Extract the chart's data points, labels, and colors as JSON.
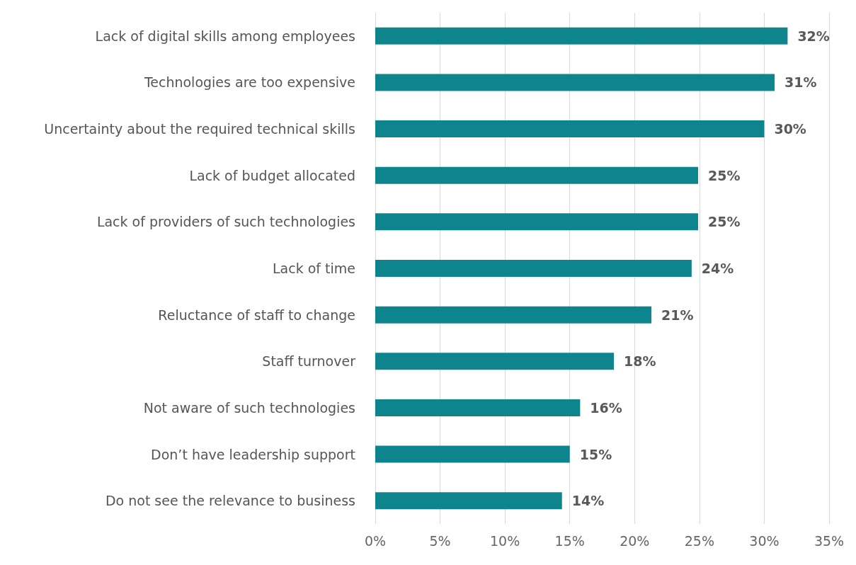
{
  "chart_data": {
    "type": "bar",
    "orientation": "horizontal",
    "categories": [
      "Lack of digital skills among employees",
      "Technologies are too expensive",
      "Uncertainty about the required technical skills",
      "Lack of budget allocated",
      "Lack of providers of such technologies",
      "Lack of time",
      "Reluctance of staff to change",
      "Staff turnover",
      "Not aware of such technologies",
      "Don’t have leadership support",
      "Do not see the relevance to business"
    ],
    "values": [
      31.8,
      30.8,
      30.0,
      24.9,
      24.9,
      24.4,
      21.3,
      18.4,
      15.8,
      15.0,
      14.4
    ],
    "value_labels": [
      "32%",
      "31%",
      "30%",
      "25%",
      "25%",
      "24%",
      "21%",
      "18%",
      "16%",
      "15%",
      "14%"
    ],
    "color": "#0e848c",
    "xlim": [
      0,
      35
    ],
    "xticks": [
      {
        "value": 0,
        "label": "0%"
      },
      {
        "value": 5,
        "label": "5%"
      },
      {
        "value": 10,
        "label": "10%"
      },
      {
        "value": 15,
        "label": "15%"
      },
      {
        "value": 20,
        "label": "20%"
      },
      {
        "value": 25,
        "label": "25%"
      },
      {
        "value": 30,
        "label": "30%"
      },
      {
        "value": 35,
        "label": "35%"
      }
    ],
    "grid": "x"
  }
}
